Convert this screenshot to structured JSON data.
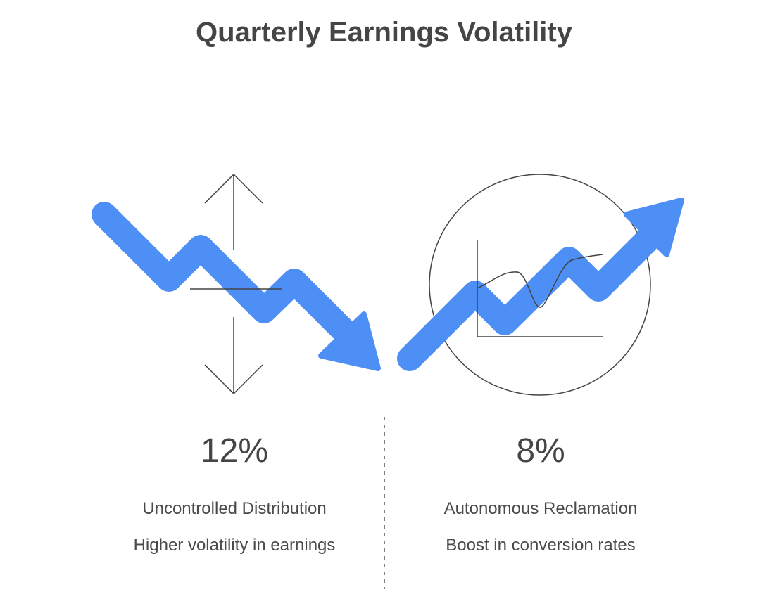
{
  "title": "Quarterly Earnings Volatility",
  "colors": {
    "arrow": "#4e8ff5",
    "line": "#444444",
    "divider": "#555555"
  },
  "left": {
    "stat": "12%",
    "label": "Uncontrolled Distribution",
    "description": "Higher volatility in earnings",
    "trend": "down",
    "icon": "volatility-range-icon"
  },
  "right": {
    "stat": "8%",
    "label": "Autonomous Reclamation",
    "description": "Boost in conversion rates",
    "trend": "up",
    "icon": "magnified-stable-chart-icon"
  }
}
